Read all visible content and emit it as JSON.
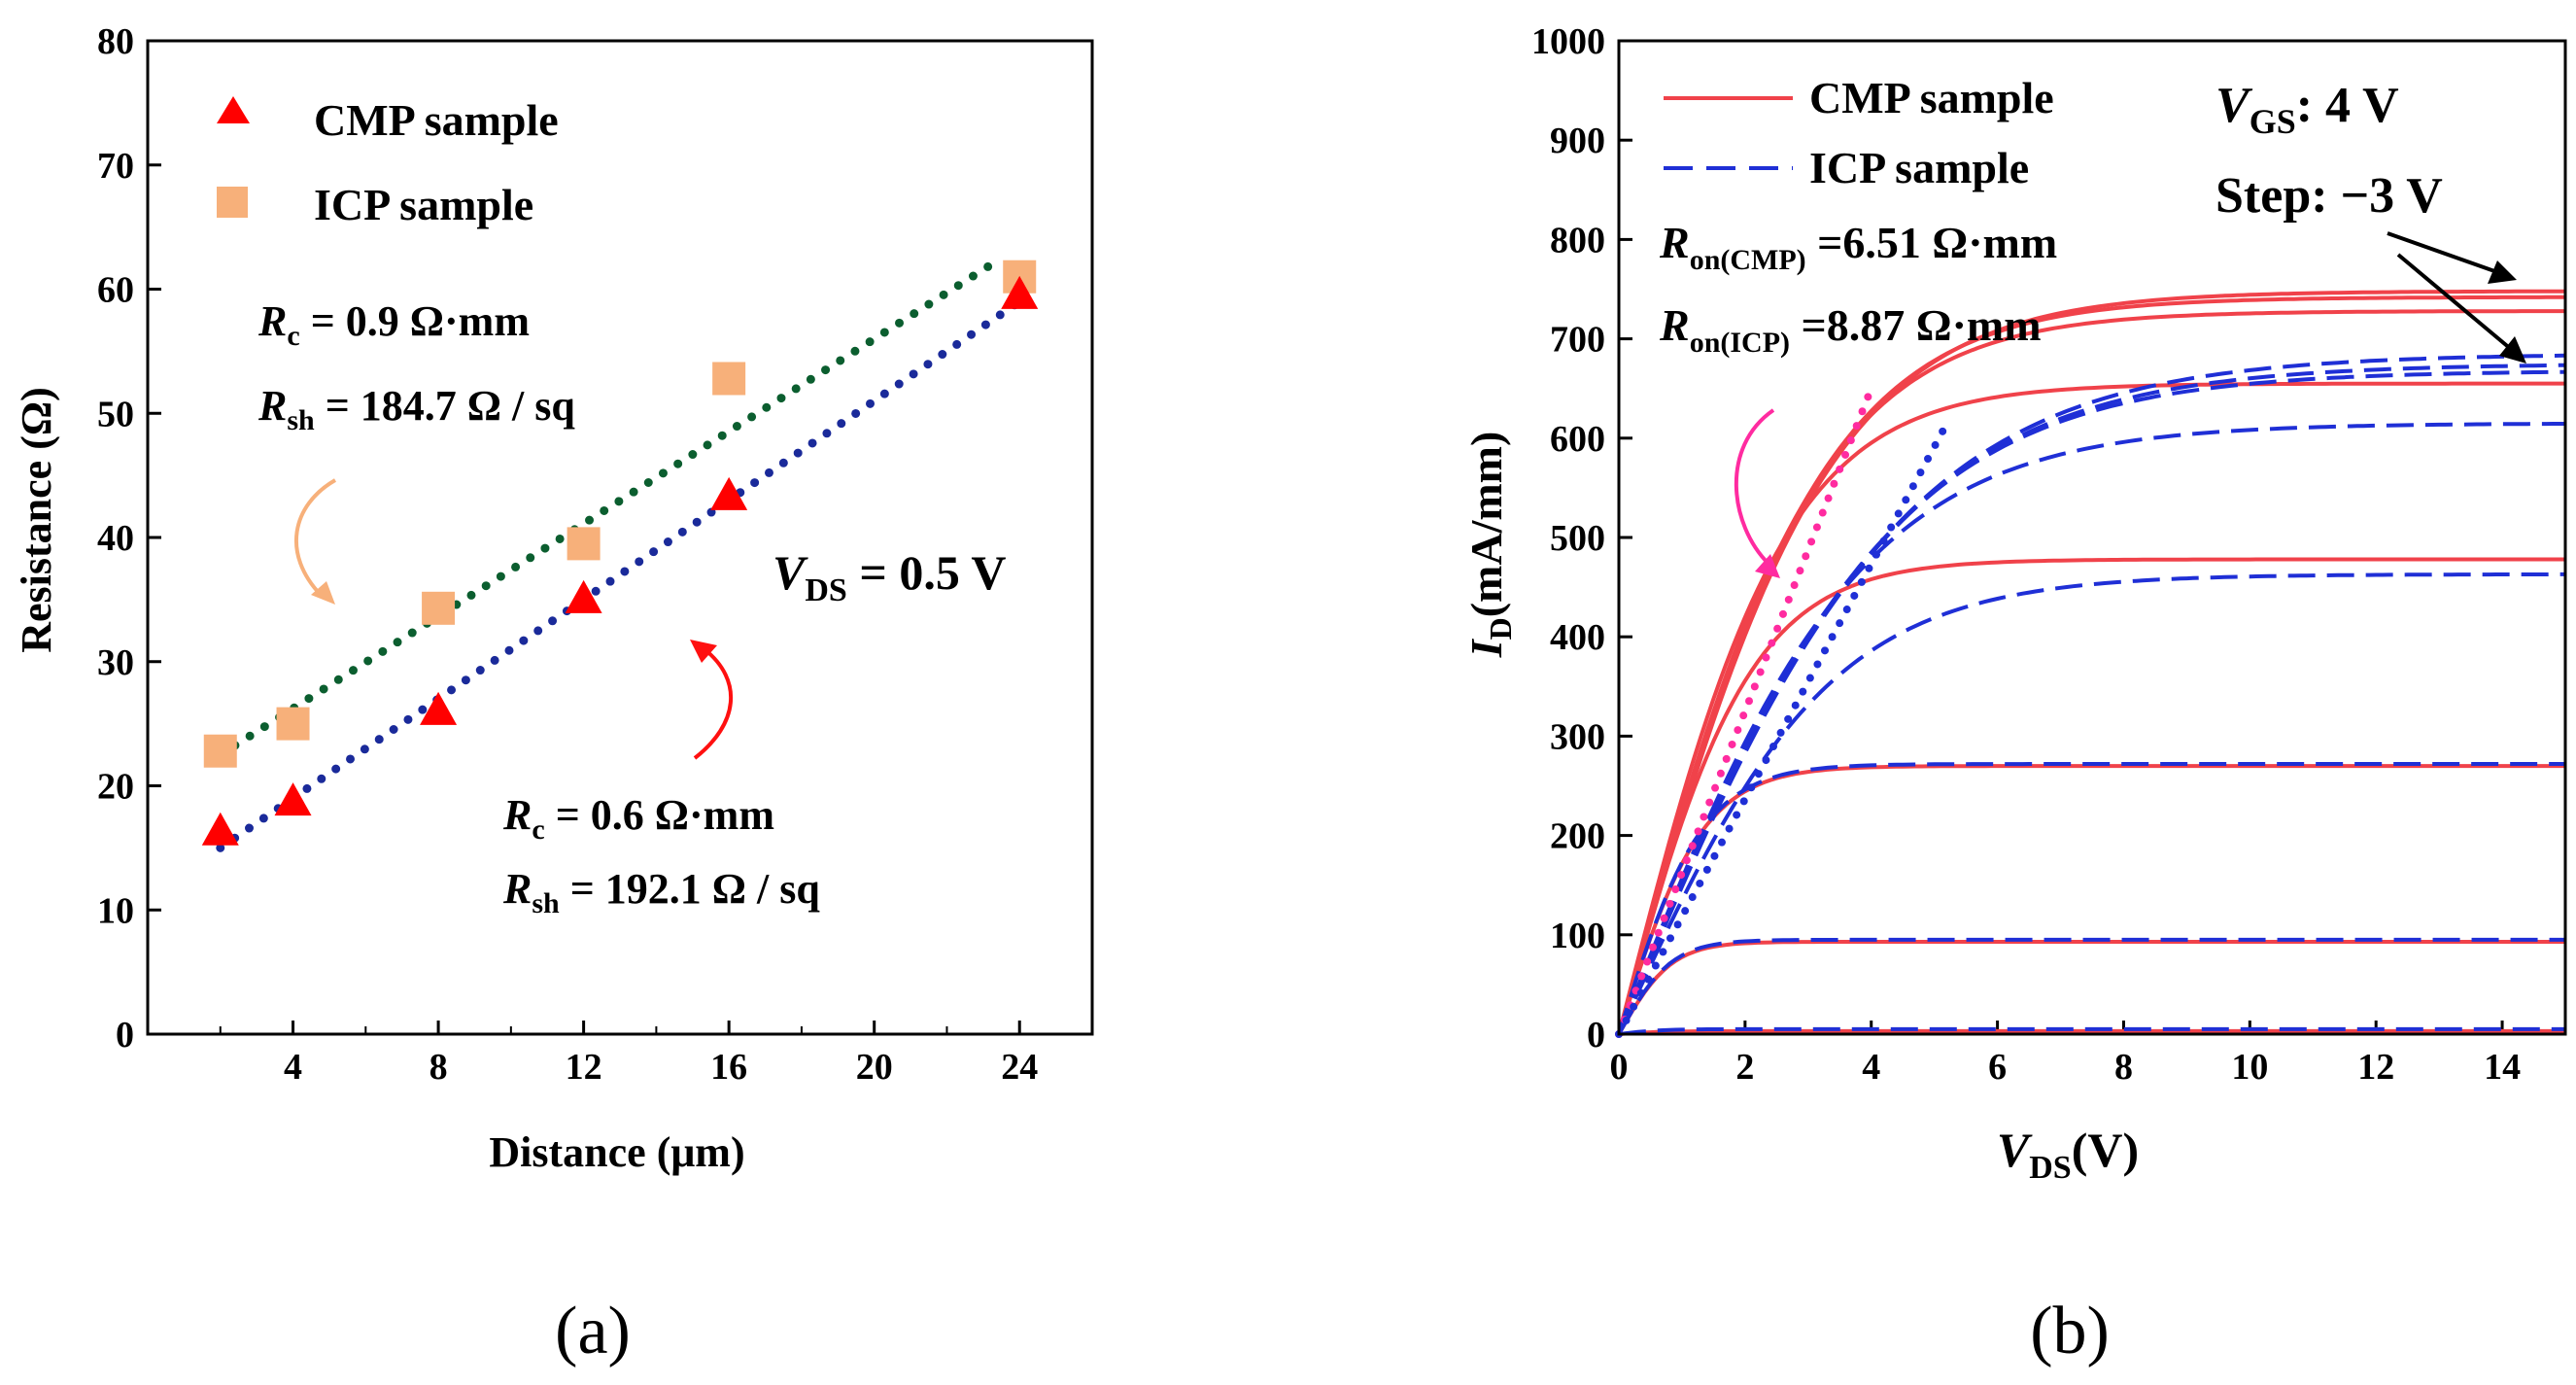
{
  "chart_data": [
    {
      "id": "a",
      "panel_label": "(a)",
      "type": "scatter",
      "title": "",
      "xlabel": "Distance (μm)",
      "ylabel": "Resistance (Ω)",
      "xlim": [
        0,
        26
      ],
      "ylim": [
        0,
        80
      ],
      "xticks": [
        4,
        8,
        12,
        16,
        20,
        24
      ],
      "yticks": [
        0,
        10,
        20,
        30,
        40,
        50,
        60,
        70,
        80
      ],
      "grid": false,
      "legend": {
        "position": "top-left",
        "entries": [
          {
            "label": "CMP sample",
            "marker": "triangle",
            "color": "#ff0000"
          },
          {
            "label": "ICP sample",
            "marker": "square",
            "color": "#f7b07a"
          }
        ]
      },
      "series": [
        {
          "name": "CMP sample",
          "color": "#ff0000",
          "points": [
            [
              2,
              16.3
            ],
            [
              4,
              18.7
            ],
            [
              8,
              26.0
            ],
            [
              12,
              35.0
            ],
            [
              16,
              43.3
            ],
            [
              24,
              59.5
            ]
          ]
        },
        {
          "name": "ICP sample",
          "color": "#f7b07a",
          "points": [
            [
              2,
              22.8
            ],
            [
              4,
              25.0
            ],
            [
              8,
              34.3
            ],
            [
              12,
              39.5
            ],
            [
              16,
              52.8
            ],
            [
              24,
              61.0
            ]
          ]
        }
      ],
      "fits": [
        {
          "name": "ICP fit",
          "color": "#0b5e2f",
          "x": [
            2,
            23.5
          ],
          "y": [
            22.5,
            62.5
          ]
        },
        {
          "name": "CMP fit",
          "color": "#1a2a9a",
          "x": [
            2,
            24
          ],
          "y": [
            15.0,
            59.0
          ]
        }
      ],
      "annotations": {
        "icp_rc": {
          "var": "R",
          "sub": "c",
          "rest": " = 0.9 Ω·mm"
        },
        "icp_rsh": {
          "var": "R",
          "sub": "sh",
          "rest": " = 184.7 Ω / sq"
        },
        "cmp_rc": {
          "var": "R",
          "sub": "c",
          "rest": " = 0.6 Ω·mm"
        },
        "cmp_rsh": {
          "var": "R",
          "sub": "sh",
          "rest": " = 192.1 Ω / sq"
        },
        "vds": {
          "var": "V",
          "sub": "DS",
          "rest": " = 0.5 V"
        }
      }
    },
    {
      "id": "b",
      "panel_label": "(b)",
      "type": "line",
      "title": "",
      "xlabel": {
        "var": "V",
        "sub": "DS",
        "rest": "(V)"
      },
      "ylabel": {
        "var": "I",
        "sub": "D",
        "rest": "(mA/mm)"
      },
      "xlim": [
        0,
        15
      ],
      "ylim": [
        0,
        1000
      ],
      "xticks": [
        0,
        2,
        4,
        6,
        8,
        10,
        12,
        14
      ],
      "yticks": [
        0,
        100,
        200,
        300,
        400,
        500,
        600,
        700,
        800,
        900,
        1000
      ],
      "grid": false,
      "legend": {
        "position": "top-left",
        "entries": [
          {
            "label": "CMP sample",
            "style": "solid",
            "color": "#f0424a"
          },
          {
            "label": "ICP sample",
            "style": "dashed",
            "color": "#1f2fd6"
          }
        ]
      },
      "annotations": {
        "vgs": {
          "var": "V",
          "sub": "GS",
          "rest": ": 4 V"
        },
        "step": "Step: −3 V",
        "ron_cmp": {
          "var": "R",
          "sub": "on(CMP)",
          "rest": " =6.51 Ω·mm"
        },
        "ron_icp": {
          "var": "R",
          "sub": "on(ICP)",
          "rest": " =8.87 Ω·mm"
        }
      },
      "series": [
        {
          "name": "CMP sample",
          "vgs": 4,
          "sat": 748,
          "k": 0.3,
          "color": "#f0424a",
          "style": "solid"
        },
        {
          "name": "CMP sample",
          "vgs": 4,
          "sat": 742,
          "k": 0.31,
          "color": "#f0424a",
          "style": "solid"
        },
        {
          "name": "CMP sample",
          "vgs": 4,
          "sat": 728,
          "k": 0.32,
          "color": "#f0424a",
          "style": "solid"
        },
        {
          "name": "CMP sample",
          "vgs": 1,
          "sat": 655,
          "k": 0.38,
          "color": "#f0424a",
          "style": "solid"
        },
        {
          "name": "CMP sample",
          "vgs": -2,
          "sat": 478,
          "k": 0.48,
          "color": "#f0424a",
          "style": "solid"
        },
        {
          "name": "CMP sample",
          "vgs": -5,
          "sat": 270,
          "k": 0.75,
          "color": "#f0424a",
          "style": "solid"
        },
        {
          "name": "CMP sample",
          "vgs": -8,
          "sat": 93,
          "k": 1.2,
          "color": "#f0424a",
          "style": "solid"
        },
        {
          "name": "CMP sample",
          "vgs": -11,
          "sat": 3,
          "k": 1.5,
          "color": "#f0424a",
          "style": "solid"
        },
        {
          "name": "ICP sample",
          "vgs": 4,
          "sat": 685,
          "k": 0.22,
          "color": "#1f2fd6",
          "style": "dashed"
        },
        {
          "name": "ICP sample",
          "vgs": 4,
          "sat": 675,
          "k": 0.225,
          "color": "#1f2fd6",
          "style": "dashed"
        },
        {
          "name": "ICP sample",
          "vgs": 4,
          "sat": 668,
          "k": 0.23,
          "color": "#1f2fd6",
          "style": "dashed"
        },
        {
          "name": "ICP sample",
          "vgs": 1,
          "sat": 615,
          "k": 0.26,
          "color": "#1f2fd6",
          "style": "dashed"
        },
        {
          "name": "ICP sample",
          "vgs": -2,
          "sat": 463,
          "k": 0.3,
          "color": "#1f2fd6",
          "style": "dashed"
        },
        {
          "name": "ICP sample",
          "vgs": -5,
          "sat": 272,
          "k": 0.75,
          "color": "#1f2fd6",
          "style": "dashed"
        },
        {
          "name": "ICP sample",
          "vgs": -8,
          "sat": 95,
          "k": 1.2,
          "color": "#1f2fd6",
          "style": "dashed"
        },
        {
          "name": "ICP sample",
          "vgs": -11,
          "sat": 5,
          "k": 1.5,
          "color": "#1f2fd6",
          "style": "dashed"
        }
      ],
      "ron_lines": [
        {
          "name": "CMP on-resistance slope",
          "color": "#ff2ba0",
          "x": [
            0,
            4.0
          ],
          "y": [
            0,
            650
          ]
        },
        {
          "name": "ICP on-resistance slope",
          "color": "#1f2fd6",
          "x": [
            0,
            5.2
          ],
          "y": [
            0,
            615
          ]
        }
      ]
    }
  ]
}
